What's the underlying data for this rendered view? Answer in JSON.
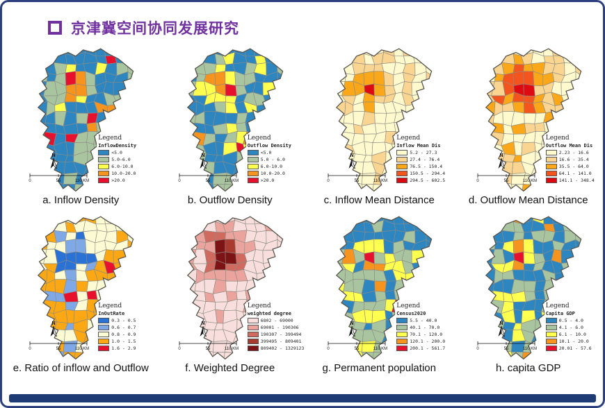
{
  "slide": {
    "title": "京津冀空间协同发展研究"
  },
  "theme": {
    "title_color": "#7030A0",
    "frame_color": "#2B3F7E",
    "footer_color": "#1E3B76"
  },
  "panels": [
    {
      "id": "a",
      "caption": "a. Inflow Density",
      "pattern": "density",
      "north_label": "N",
      "scale": {
        "ticks": [
          "0",
          "55",
          "110 KM"
        ]
      },
      "legend": {
        "title": "Legend",
        "field": "InflowDensity",
        "classes": [
          {
            "label": "<5.0",
            "color": "#2E86C1"
          },
          {
            "label": "5.0-6.0",
            "color": "#A9C5A0"
          },
          {
            "label": "6.0-10.0",
            "color": "#FFFF4F"
          },
          {
            "label": "10.0-20.0",
            "color": "#F7941E"
          },
          {
            "label": ">20.0",
            "color": "#E8112D"
          }
        ]
      }
    },
    {
      "id": "b",
      "caption": "b. Outflow Density",
      "pattern": "density",
      "north_label": "N",
      "scale": {
        "ticks": [
          "0",
          "55",
          "110 KM"
        ]
      },
      "legend": {
        "title": "Legend",
        "field": "Outflow Density",
        "classes": [
          {
            "label": "<5.0",
            "color": "#2E86C1"
          },
          {
            "label": "5.0 - 6.0",
            "color": "#A9C5A0"
          },
          {
            "label": "6.0-10.0",
            "color": "#FFFF4F"
          },
          {
            "label": "10.0-20.0",
            "color": "#F7941E"
          },
          {
            "label": ">20.0",
            "color": "#E8112D"
          }
        ]
      }
    },
    {
      "id": "c",
      "caption": "c. Inflow Mean Distance",
      "pattern": "distance",
      "north_label": "N",
      "scale": {
        "ticks": [
          "0",
          "55",
          "110 KM"
        ]
      },
      "legend": {
        "title": "Legend",
        "field": "Inflow Mean Dis",
        "classes": [
          {
            "label": "5.2 - 27.3",
            "color": "#FFF9CE"
          },
          {
            "label": "27.4 - 76.4",
            "color": "#FAD592"
          },
          {
            "label": "76.5 - 150.4",
            "color": "#FAA81A"
          },
          {
            "label": "150.5 - 294.4",
            "color": "#F4541D"
          },
          {
            "label": "294.5 - 602.5",
            "color": "#DE0A12"
          }
        ]
      }
    },
    {
      "id": "d",
      "caption": "d. Outflow Mean Distance",
      "pattern": "distance2",
      "north_label": "N",
      "scale": {
        "ticks": [
          "0",
          "55",
          "110 KM"
        ]
      },
      "legend": {
        "title": "Legend",
        "field": "Outflow Mean Dis",
        "classes": [
          {
            "label": "2.23 - 16.6",
            "color": "#FFF9CE"
          },
          {
            "label": "16.6 - 35.4",
            "color": "#FAD592"
          },
          {
            "label": "35.5 - 64.0",
            "color": "#FAA81A"
          },
          {
            "label": "64.1 - 141.0",
            "color": "#F4541D"
          },
          {
            "label": "141.1 - 348.4",
            "color": "#DE0A12"
          }
        ]
      }
    },
    {
      "id": "e",
      "caption": "e. Ratio of inflow and Outflow",
      "pattern": "ratio",
      "north_label": "N",
      "scale": {
        "ticks": [
          "0",
          "55",
          "110 KM"
        ]
      },
      "legend": {
        "title": "Legend",
        "field": "InOutRate",
        "classes": [
          {
            "label": "0.3 - 0.5",
            "color": "#2B72D7"
          },
          {
            "label": "0.6 - 0.7",
            "color": "#7FA9E6"
          },
          {
            "label": "0.8 - 0.9",
            "color": "#FDFBD4"
          },
          {
            "label": "1.0 - 1.5",
            "color": "#FCA815"
          },
          {
            "label": "1.6 - 2.9",
            "color": "#E8112D"
          }
        ]
      }
    },
    {
      "id": "f",
      "caption": "f. Weighted Degree",
      "pattern": "weighted",
      "north_label": "N",
      "scale": {
        "ticks": [
          "0",
          "55",
          "110 KM"
        ]
      },
      "legend": {
        "title": "Legend",
        "field": "weighted degree",
        "classes": [
          {
            "label": "6802 - 69000",
            "color": "#F8DEDC"
          },
          {
            "label": "69001 - 190306",
            "color": "#EBA49D"
          },
          {
            "label": "190307 - 399494",
            "color": "#D06A5F"
          },
          {
            "label": "399495 - 809401",
            "color": "#A93A30"
          },
          {
            "label": "809402 - 1329123",
            "color": "#7E1315"
          }
        ]
      }
    },
    {
      "id": "g",
      "caption": "g. Permanent population",
      "pattern": "population",
      "north_label": "N",
      "scale": {
        "ticks": [
          "0",
          "55",
          "110 KM"
        ]
      },
      "legend": {
        "title": "Legend",
        "field": "Census2020",
        "classes": [
          {
            "label": "5.5 - 40.0",
            "color": "#2E86C1"
          },
          {
            "label": "40.1 - 70.0",
            "color": "#A9C5A0"
          },
          {
            "label": "70.1 - 120.0",
            "color": "#FFFF4F"
          },
          {
            "label": "120.1 - 200.0",
            "color": "#F7941E"
          },
          {
            "label": "200.1 - 561.7",
            "color": "#E8112D"
          }
        ]
      }
    },
    {
      "id": "h",
      "caption": "h. capita GDP",
      "pattern": "gdp",
      "north_label": "N",
      "scale": {
        "ticks": [
          "0",
          "55",
          "110 KM"
        ]
      },
      "legend": {
        "title": "Legend",
        "field": "Capita GDP",
        "classes": [
          {
            "label": "0.5 - 4.0",
            "color": "#2E86C1"
          },
          {
            "label": "4.1 - 6.0",
            "color": "#A9C5A0"
          },
          {
            "label": "6.1 - 10.0",
            "color": "#FFFF4F"
          },
          {
            "label": "10.1 - 20.0",
            "color": "#F7941E"
          },
          {
            "label": "20.01 - 57.6",
            "color": "#E8112D"
          }
        ]
      }
    }
  ]
}
